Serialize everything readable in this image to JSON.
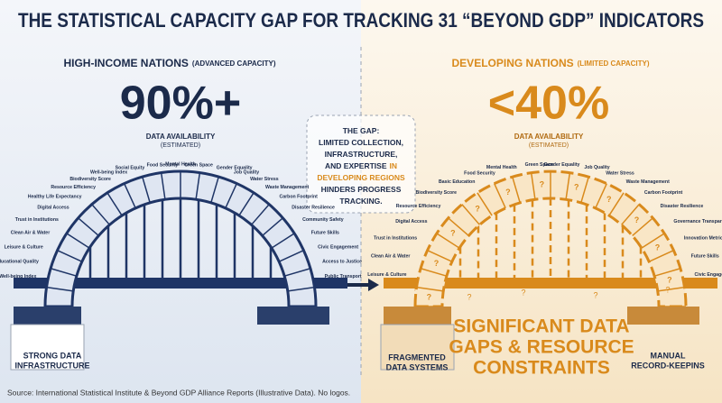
{
  "title": "THE STATISTICAL CAPACITY GAP FOR TRACKING 31 “BEYOND GDP” INDICATORS",
  "left": {
    "heading": "HIGH-INCOME NATIONS",
    "heading_note": "(ADVANCED CAPACITY)",
    "stat": "90%+",
    "stat_label": "DATA AVAILABILITY",
    "stat_note": "(ESTIMATED)",
    "indicators": [
      "Well-being Index",
      "Educational Quality",
      "Leisure & Culture",
      "Clean Air & Water",
      "Trust in Institutions",
      "Digital Access",
      "Healthy Life Expectancy",
      "Resource Efficiency",
      "Biodiversity Score",
      "Well-being Index",
      "Social Equity",
      "Food Security",
      "Mental Health",
      "Green Space",
      "Gender Equality",
      "Job Quality",
      "Water Stress",
      "Waste Management",
      "Carbon Footprint",
      "Disaster Resilience",
      "Community Safety",
      "Future Skills",
      "Civic Engagement",
      "Access to Justice",
      "Public Transport"
    ],
    "base_label": [
      "STRONG DATA",
      "INFRASTRUCTURE"
    ]
  },
  "gap": {
    "lines": [
      [
        {
          "text": "THE GAP:"
        }
      ],
      [
        {
          "text": "LIMITED COLLECTION,"
        }
      ],
      [
        {
          "text": "INFRASTRUCTURE,"
        }
      ],
      [
        {
          "text": "AND EXPERTISE"
        },
        {
          "text": "IN",
          "highlight": true
        }
      ],
      [
        {
          "text": "DEVELOPING REGIONS",
          "highlight": true
        }
      ],
      [
        {
          "text": "HINDERS PROGRESS"
        }
      ],
      [
        {
          "text": "TRACKING."
        }
      ]
    ]
  },
  "right": {
    "heading": "DEVELOPING NATIONS",
    "heading_note": "(LIMITED CAPACITY)",
    "stat": "<40%",
    "stat_label": "DATA AVAILABILITY",
    "stat_note": "(ESTIMATED)",
    "indicators": [
      "Leisure & Culture",
      "Clean Air & Water",
      "Trust in Institutions",
      "Digital Access",
      "Resource Efficiency",
      "Biodiversity Score",
      "Basic Education",
      "Food Security",
      "Mental Health",
      "Green Space",
      "Gender Equality",
      "Job Quality",
      "Water Stress",
      "Waste Management",
      "Carbon Footprint",
      "Disaster Resilience",
      "Governance Transparency",
      "Innovation Metrics",
      "Future Skills",
      "Civic Engagement"
    ],
    "unknown_mark": "?",
    "headline": [
      "SIGNIFICANT DATA",
      "GAPS & RESOURCE",
      "CONSTRAINTS"
    ],
    "base_left": [
      "FRAGMENTED",
      "DATA SYSTEMS"
    ],
    "base_right": [
      "MANUAL",
      "RECORD-KEEPINS"
    ]
  },
  "source": "Source: International Statistical Institute & Beyond GDP Alliance Reports (Illustrative Data). No logos."
}
